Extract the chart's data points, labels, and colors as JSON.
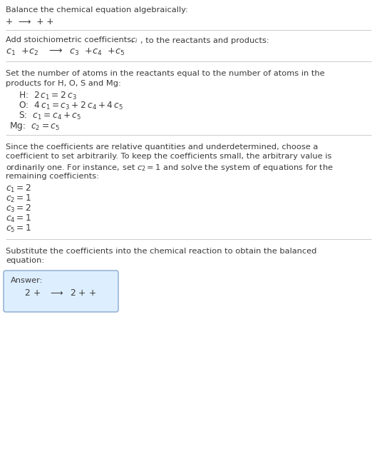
{
  "bg_color": "#ffffff",
  "text_color": "#3a3a3a",
  "line_color": "#cccccc",
  "answer_box_color": "#ddeeff",
  "answer_box_border": "#88aacc",
  "s1_title": "Balance the chemical equation algebraically:",
  "s1_eq": "+  ⟶  + +",
  "s2_title_a": "Add stoichiometric coefficients, ",
  "s2_title_b": ", to the reactants and products:",
  "s2_eq": "$c_1$  +$c_2$   ⟶  $c_3$  +$c_4$  +$c_5$",
  "s3_title": "Set the number of atoms in the reactants equal to the number of atoms in the\nproducts for H, O, S and Mg:",
  "s3_eqs": [
    [
      "H:",
      "  $2\\,c_1 = 2\\,c_3$"
    ],
    [
      "O:",
      "  $4\\,c_1 = c_3 + 2\\,c_4 + 4\\,c_5$"
    ],
    [
      "S:",
      "  $c_1 = c_4 + c_5$"
    ],
    [
      "Mg:",
      "  $c_2 = c_5$"
    ]
  ],
  "s4_title": "Since the coefficients are relative quantities and underdetermined, choose a\ncoefficient to set arbitrarily. To keep the coefficients small, the arbitrary value is\nordinarily one. For instance, set $c_2 = 1$ and solve the system of equations for the\nremaining coefficients:",
  "s4_eqs": [
    "$c_1 = 2$",
    "$c_2 = 1$",
    "$c_3 = 2$",
    "$c_4 = 1$",
    "$c_5 = 1$"
  ],
  "s5_title": "Substitute the coefficients into the chemical reaction to obtain the balanced\nequation:",
  "answer_label": "Answer:",
  "answer_eq": "     2 +   ⟶  2 + +",
  "body_fs": 8.2,
  "eq_fs": 8.8,
  "line_color_alpha": 0.5
}
